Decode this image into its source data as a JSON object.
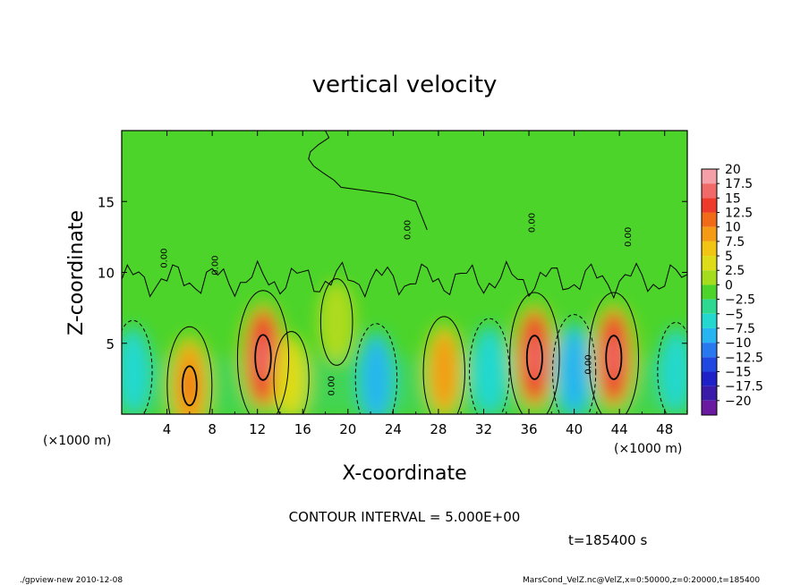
{
  "chart_data": {
    "type": "heatmap",
    "title": "vertical velocity",
    "xlabel": "X-coordinate",
    "ylabel": "Z-coordinate",
    "x_unit": "(×1000 m)",
    "y_unit": "(×1000 m)",
    "xlim": [
      0,
      50
    ],
    "ylim": [
      0,
      20
    ],
    "x_ticks": [
      4,
      8,
      12,
      16,
      20,
      24,
      28,
      32,
      36,
      40,
      44,
      48
    ],
    "y_ticks": [
      5,
      10,
      15
    ],
    "colorbar": {
      "levels": [
        20,
        17.5,
        15,
        12.5,
        10,
        7.5,
        5,
        2.5,
        0,
        -2.5,
        -5,
        -7.5,
        -10,
        -12.5,
        -15,
        -17.5,
        -20
      ],
      "level_labels": [
        "20",
        "17.5",
        "15",
        "12.5",
        "10",
        "7.5",
        "5",
        "2.5",
        "0",
        "−2.5",
        "−5",
        "−7.5",
        "−10",
        "−12.5",
        "−15",
        "−17.5",
        "−20"
      ],
      "colors": [
        "#f5a0a8",
        "#f06a6a",
        "#ee3a2a",
        "#f06a18",
        "#f49a14",
        "#f2c414",
        "#dedc18",
        "#a6dc1e",
        "#4cd42a",
        "#2ed890",
        "#24d8d0",
        "#28b4f0",
        "#2878f0",
        "#2048e0",
        "#1e20c8",
        "#3a1aa8",
        "#6a1aa0"
      ]
    },
    "cells": [
      {
        "x": 1,
        "z": 3,
        "w": -6
      },
      {
        "x": 6,
        "z": 2,
        "w": 10
      },
      {
        "x": 12.5,
        "z": 4,
        "w": 14
      },
      {
        "x": 15,
        "z": 2.5,
        "w": 4
      },
      {
        "x": 19,
        "z": 6.5,
        "w": 2
      },
      {
        "x": 22.5,
        "z": 2.5,
        "w": -8
      },
      {
        "x": 28.5,
        "z": 3,
        "w": 8
      },
      {
        "x": 32.5,
        "z": 3,
        "w": -7
      },
      {
        "x": 36.5,
        "z": 4,
        "w": 13
      },
      {
        "x": 40,
        "z": 3,
        "w": -9
      },
      {
        "x": 43.5,
        "z": 4,
        "w": 13
      },
      {
        "x": 49,
        "z": 3,
        "w": -5
      }
    ],
    "contour_interval": "CONTOUR INTERVAL = 5.000E+00",
    "time_label": "t=185400 s",
    "footer_left": "./gpview-new  2010-12-08",
    "footer_right": "MarsCond_VelZ.nc@VelZ,x=0:50000,z=0:20000,t=185400",
    "zero_contour_label": "0.00",
    "colors": {
      "background": "#ffffff",
      "field_base": "#4cd42a",
      "contour": "#000000"
    }
  }
}
